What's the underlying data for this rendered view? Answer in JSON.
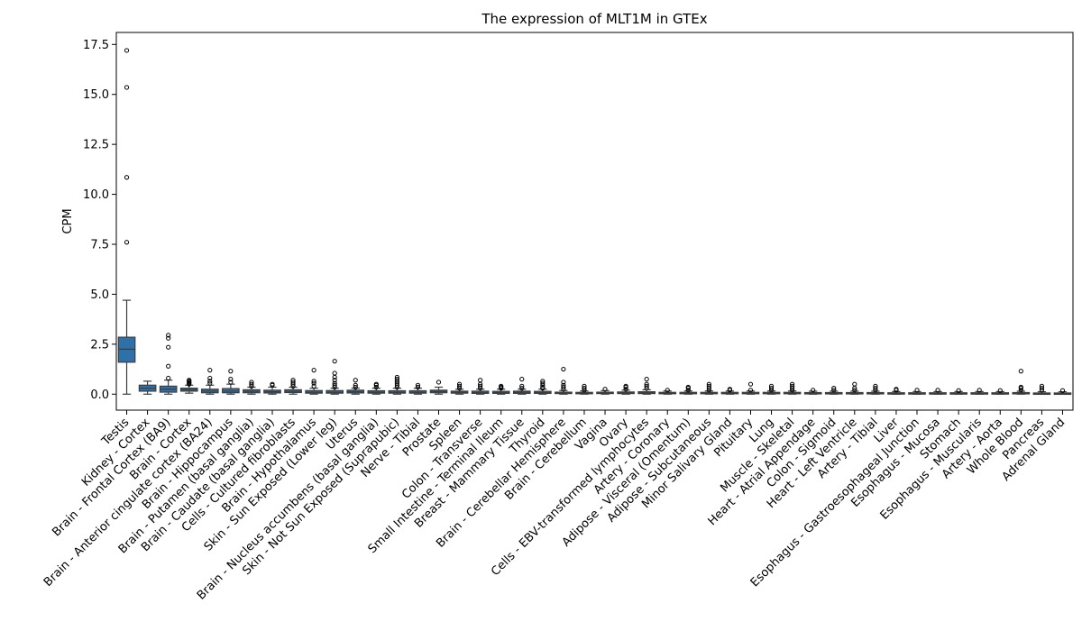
{
  "chart_data": {
    "type": "box",
    "title": "The expression of MLT1M in GTEx",
    "xlabel": "",
    "ylabel": "CPM",
    "ylim": [
      -0.8,
      18.1
    ],
    "yticks": [
      0.0,
      2.5,
      5.0,
      7.5,
      10.0,
      12.5,
      15.0,
      17.5
    ],
    "ytick_labels": [
      "0.0",
      "2.5",
      "5.0",
      "7.5",
      "10.0",
      "12.5",
      "15.0",
      "17.5"
    ],
    "grid": false,
    "box_color": "#2e71a8",
    "categories": [
      {
        "name": "Testis",
        "whislo": 0.0,
        "q1": 1.6,
        "med": 2.25,
        "q3": 2.85,
        "whishi": 4.7,
        "fliers": [
          7.6,
          10.85,
          15.35,
          17.2
        ]
      },
      {
        "name": "Kidney - Cortex",
        "whislo": 0.0,
        "q1": 0.15,
        "med": 0.3,
        "q3": 0.45,
        "whishi": 0.65,
        "fliers": []
      },
      {
        "name": "Brain - Frontal Cortex (BA9)",
        "whislo": 0.0,
        "q1": 0.1,
        "med": 0.25,
        "q3": 0.4,
        "whishi": 0.7,
        "fliers": [
          0.8,
          1.4,
          2.35,
          2.8,
          2.95
        ]
      },
      {
        "name": "Brain - Cortex",
        "whislo": 0.05,
        "q1": 0.15,
        "med": 0.22,
        "q3": 0.3,
        "whishi": 0.45,
        "fliers": [
          0.5,
          0.55,
          0.6,
          0.65,
          0.7
        ]
      },
      {
        "name": "Brain - Anterior cingulate cortex (BA24)",
        "whislo": 0.0,
        "q1": 0.07,
        "med": 0.15,
        "q3": 0.25,
        "whishi": 0.45,
        "fliers": [
          0.55,
          0.65,
          0.8,
          1.2
        ]
      },
      {
        "name": "Brain - Hippocampus",
        "whislo": 0.0,
        "q1": 0.07,
        "med": 0.15,
        "q3": 0.28,
        "whishi": 0.5,
        "fliers": [
          0.6,
          0.75,
          1.15
        ]
      },
      {
        "name": "Brain - Putamen (basal ganglia)",
        "whislo": 0.0,
        "q1": 0.07,
        "med": 0.14,
        "q3": 0.22,
        "whishi": 0.35,
        "fliers": [
          0.4,
          0.5,
          0.6
        ]
      },
      {
        "name": "Brain - Caudate (basal ganglia)",
        "whislo": 0.0,
        "q1": 0.06,
        "med": 0.12,
        "q3": 0.2,
        "whishi": 0.35,
        "fliers": [
          0.45,
          0.5
        ]
      },
      {
        "name": "Cells - Cultured fibroblasts",
        "whislo": 0.0,
        "q1": 0.08,
        "med": 0.14,
        "q3": 0.22,
        "whishi": 0.35,
        "fliers": [
          0.4,
          0.5,
          0.6,
          0.7
        ]
      },
      {
        "name": "Brain - Hypothalamus",
        "whislo": 0.0,
        "q1": 0.05,
        "med": 0.1,
        "q3": 0.18,
        "whishi": 0.3,
        "fliers": [
          0.4,
          0.55,
          0.65,
          1.2
        ]
      },
      {
        "name": "Skin - Sun Exposed (Lower leg)",
        "whislo": 0.0,
        "q1": 0.05,
        "med": 0.1,
        "q3": 0.18,
        "whishi": 0.3,
        "fliers": [
          0.35,
          0.45,
          0.55,
          0.7,
          0.85,
          1.05,
          1.65
        ]
      },
      {
        "name": "Uterus",
        "whislo": 0.0,
        "q1": 0.06,
        "med": 0.12,
        "q3": 0.2,
        "whishi": 0.3,
        "fliers": [
          0.35,
          0.45,
          0.7
        ]
      },
      {
        "name": "Brain - Nucleus accumbens (basal ganglia)",
        "whislo": 0.0,
        "q1": 0.05,
        "med": 0.1,
        "q3": 0.17,
        "whishi": 0.3,
        "fliers": [
          0.35,
          0.45,
          0.5
        ]
      },
      {
        "name": "Skin - Not Sun Exposed (Suprapubic)",
        "whislo": 0.0,
        "q1": 0.05,
        "med": 0.1,
        "q3": 0.17,
        "whishi": 0.3,
        "fliers": [
          0.35,
          0.45,
          0.55,
          0.65,
          0.75,
          0.85
        ]
      },
      {
        "name": "Nerve - Tibial",
        "whislo": 0.0,
        "q1": 0.05,
        "med": 0.1,
        "q3": 0.17,
        "whishi": 0.3,
        "fliers": [
          0.35,
          0.45
        ]
      },
      {
        "name": "Prostate",
        "whislo": 0.0,
        "q1": 0.07,
        "med": 0.13,
        "q3": 0.2,
        "whishi": 0.35,
        "fliers": [
          0.6
        ]
      },
      {
        "name": "Spleen",
        "whislo": 0.0,
        "q1": 0.05,
        "med": 0.09,
        "q3": 0.15,
        "whishi": 0.25,
        "fliers": [
          0.3,
          0.4,
          0.5
        ]
      },
      {
        "name": "Colon - Transverse",
        "whislo": 0.0,
        "q1": 0.04,
        "med": 0.08,
        "q3": 0.15,
        "whishi": 0.25,
        "fliers": [
          0.3,
          0.4,
          0.5,
          0.7
        ]
      },
      {
        "name": "Small Intestine - Terminal Ileum",
        "whislo": 0.0,
        "q1": 0.04,
        "med": 0.08,
        "q3": 0.14,
        "whishi": 0.25,
        "fliers": [
          0.3,
          0.35,
          0.4
        ]
      },
      {
        "name": "Breast - Mammary Tissue",
        "whislo": 0.0,
        "q1": 0.04,
        "med": 0.09,
        "q3": 0.15,
        "whishi": 0.25,
        "fliers": [
          0.3,
          0.4,
          0.75
        ]
      },
      {
        "name": "Thyroid",
        "whislo": 0.0,
        "q1": 0.04,
        "med": 0.08,
        "q3": 0.14,
        "whishi": 0.25,
        "fliers": [
          0.3,
          0.35,
          0.45,
          0.55,
          0.65
        ]
      },
      {
        "name": "Brain - Cerebellar Hemisphere",
        "whislo": 0.0,
        "q1": 0.03,
        "med": 0.06,
        "q3": 0.1,
        "whishi": 0.18,
        "fliers": [
          0.25,
          0.35,
          0.45,
          0.6,
          1.25
        ]
      },
      {
        "name": "Brain - Cerebellum",
        "whislo": 0.0,
        "q1": 0.02,
        "med": 0.05,
        "q3": 0.09,
        "whishi": 0.16,
        "fliers": [
          0.2,
          0.3,
          0.4
        ]
      },
      {
        "name": "Vagina",
        "whislo": 0.0,
        "q1": 0.03,
        "med": 0.06,
        "q3": 0.1,
        "whishi": 0.18,
        "fliers": [
          0.25
        ]
      },
      {
        "name": "Ovary",
        "whislo": 0.0,
        "q1": 0.03,
        "med": 0.06,
        "q3": 0.11,
        "whishi": 0.2,
        "fliers": [
          0.25,
          0.35,
          0.4
        ]
      },
      {
        "name": "Cells - EBV-transformed lymphocytes",
        "whislo": 0.0,
        "q1": 0.03,
        "med": 0.07,
        "q3": 0.12,
        "whishi": 0.22,
        "fliers": [
          0.3,
          0.4,
          0.5,
          0.75
        ]
      },
      {
        "name": "Artery - Coronary",
        "whislo": 0.0,
        "q1": 0.02,
        "med": 0.05,
        "q3": 0.09,
        "whishi": 0.16,
        "fliers": [
          0.2
        ]
      },
      {
        "name": "Adipose - Visceral (Omentum)",
        "whislo": 0.0,
        "q1": 0.02,
        "med": 0.05,
        "q3": 0.09,
        "whishi": 0.16,
        "fliers": [
          0.2,
          0.3,
          0.35
        ]
      },
      {
        "name": "Adipose - Subcutaneous",
        "whislo": 0.0,
        "q1": 0.02,
        "med": 0.05,
        "q3": 0.09,
        "whishi": 0.16,
        "fliers": [
          0.2,
          0.3,
          0.4,
          0.5
        ]
      },
      {
        "name": "Minor Salivary Gland",
        "whislo": 0.0,
        "q1": 0.02,
        "med": 0.05,
        "q3": 0.09,
        "whishi": 0.16,
        "fliers": [
          0.2,
          0.25
        ]
      },
      {
        "name": "Pituitary",
        "whislo": 0.0,
        "q1": 0.02,
        "med": 0.05,
        "q3": 0.09,
        "whishi": 0.16,
        "fliers": [
          0.2,
          0.5
        ]
      },
      {
        "name": "Lung",
        "whislo": 0.0,
        "q1": 0.02,
        "med": 0.05,
        "q3": 0.09,
        "whishi": 0.16,
        "fliers": [
          0.2,
          0.3,
          0.4
        ]
      },
      {
        "name": "Muscle - Skeletal",
        "whislo": 0.0,
        "q1": 0.02,
        "med": 0.05,
        "q3": 0.09,
        "whishi": 0.16,
        "fliers": [
          0.2,
          0.3,
          0.4,
          0.5
        ]
      },
      {
        "name": "Heart - Atrial Appendage",
        "whislo": 0.0,
        "q1": 0.02,
        "med": 0.04,
        "q3": 0.08,
        "whishi": 0.15,
        "fliers": [
          0.2
        ]
      },
      {
        "name": "Colon - Sigmoid",
        "whislo": 0.0,
        "q1": 0.02,
        "med": 0.04,
        "q3": 0.08,
        "whishi": 0.15,
        "fliers": [
          0.2,
          0.3
        ]
      },
      {
        "name": "Heart - Left Ventricle",
        "whislo": 0.0,
        "q1": 0.02,
        "med": 0.04,
        "q3": 0.08,
        "whishi": 0.15,
        "fliers": [
          0.2,
          0.3,
          0.5
        ]
      },
      {
        "name": "Artery - Tibial",
        "whislo": 0.0,
        "q1": 0.02,
        "med": 0.04,
        "q3": 0.08,
        "whishi": 0.15,
        "fliers": [
          0.2,
          0.3,
          0.4
        ]
      },
      {
        "name": "Liver",
        "whislo": 0.0,
        "q1": 0.02,
        "med": 0.04,
        "q3": 0.07,
        "whishi": 0.13,
        "fliers": [
          0.2,
          0.25
        ]
      },
      {
        "name": "Esophagus - Gastroesophageal Junction",
        "whislo": 0.0,
        "q1": 0.02,
        "med": 0.04,
        "q3": 0.07,
        "whishi": 0.13,
        "fliers": [
          0.2
        ]
      },
      {
        "name": "Esophagus - Mucosa",
        "whislo": 0.0,
        "q1": 0.02,
        "med": 0.04,
        "q3": 0.07,
        "whishi": 0.13,
        "fliers": [
          0.2
        ]
      },
      {
        "name": "Stomach",
        "whislo": 0.0,
        "q1": 0.02,
        "med": 0.04,
        "q3": 0.07,
        "whishi": 0.13,
        "fliers": [
          0.18
        ]
      },
      {
        "name": "Esophagus - Muscularis",
        "whislo": 0.0,
        "q1": 0.02,
        "med": 0.04,
        "q3": 0.07,
        "whishi": 0.13,
        "fliers": [
          0.2
        ]
      },
      {
        "name": "Artery - Aorta",
        "whislo": 0.0,
        "q1": 0.02,
        "med": 0.04,
        "q3": 0.07,
        "whishi": 0.13,
        "fliers": [
          0.18
        ]
      },
      {
        "name": "Whole Blood",
        "whislo": 0.0,
        "q1": 0.02,
        "med": 0.04,
        "q3": 0.08,
        "whishi": 0.15,
        "fliers": [
          0.2,
          0.3,
          0.35,
          1.15
        ]
      },
      {
        "name": "Pancreas",
        "whislo": 0.0,
        "q1": 0.01,
        "med": 0.03,
        "q3": 0.06,
        "whishi": 0.12,
        "fliers": [
          0.2,
          0.3,
          0.4
        ]
      },
      {
        "name": "Adrenal Gland",
        "whislo": 0.0,
        "q1": 0.01,
        "med": 0.03,
        "q3": 0.06,
        "whishi": 0.12,
        "fliers": [
          0.18
        ]
      }
    ]
  }
}
